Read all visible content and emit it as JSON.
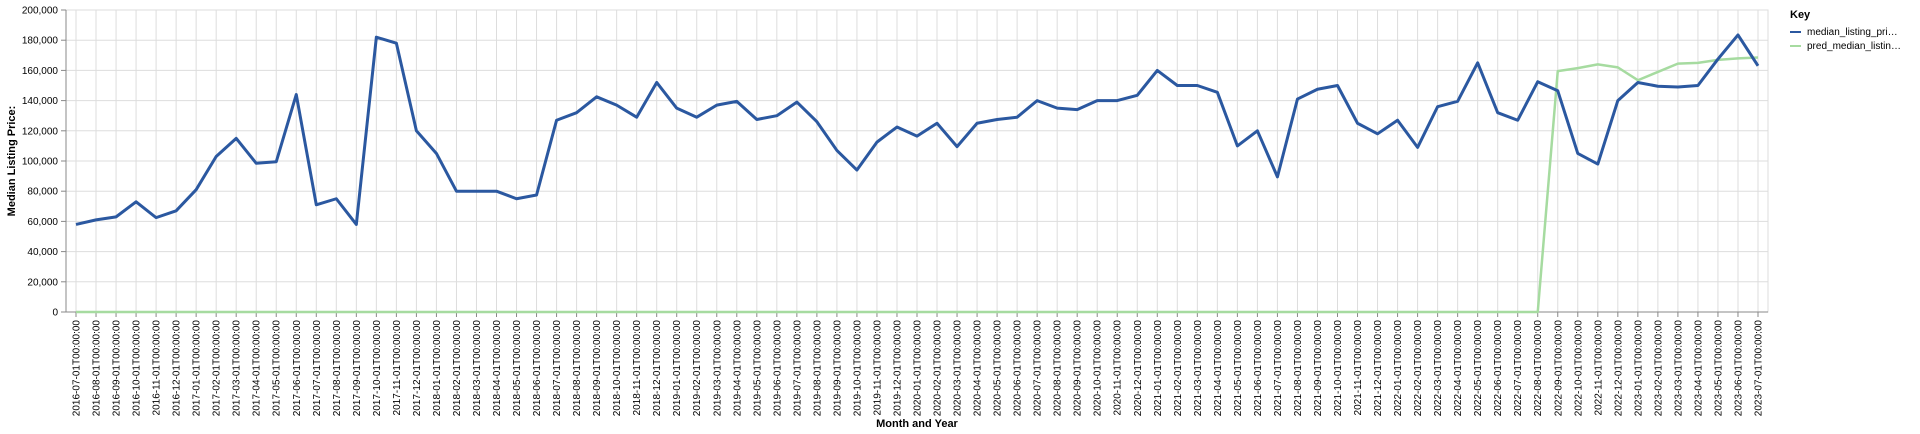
{
  "chart_data": {
    "type": "line",
    "xlabel": "Month and Year",
    "ylabel": "Median Listing Price:",
    "ylim": [
      0,
      200000
    ],
    "yticks": [
      "0",
      "20,000",
      "40,000",
      "60,000",
      "80,000",
      "100,000",
      "120,000",
      "140,000",
      "160,000",
      "180,000",
      "200,000"
    ],
    "grid": true,
    "legend": {
      "title": "Key",
      "placement": "top-right"
    },
    "x": [
      "2016-07-01T00:00:00",
      "2016-08-01T00:00:00",
      "2016-09-01T00:00:00",
      "2016-10-01T00:00:00",
      "2016-11-01T00:00:00",
      "2016-12-01T00:00:00",
      "2017-01-01T00:00:00",
      "2017-02-01T00:00:00",
      "2017-03-01T00:00:00",
      "2017-04-01T00:00:00",
      "2017-05-01T00:00:00",
      "2017-06-01T00:00:00",
      "2017-07-01T00:00:00",
      "2017-08-01T00:00:00",
      "2017-09-01T00:00:00",
      "2017-10-01T00:00:00",
      "2017-11-01T00:00:00",
      "2017-12-01T00:00:00",
      "2018-01-01T00:00:00",
      "2018-02-01T00:00:00",
      "2018-03-01T00:00:00",
      "2018-04-01T00:00:00",
      "2018-05-01T00:00:00",
      "2018-06-01T00:00:00",
      "2018-07-01T00:00:00",
      "2018-08-01T00:00:00",
      "2018-09-01T00:00:00",
      "2018-10-01T00:00:00",
      "2018-11-01T00:00:00",
      "2018-12-01T00:00:00",
      "2019-01-01T00:00:00",
      "2019-02-01T00:00:00",
      "2019-03-01T00:00:00",
      "2019-04-01T00:00:00",
      "2019-05-01T00:00:00",
      "2019-06-01T00:00:00",
      "2019-07-01T00:00:00",
      "2019-08-01T00:00:00",
      "2019-09-01T00:00:00",
      "2019-10-01T00:00:00",
      "2019-11-01T00:00:00",
      "2019-12-01T00:00:00",
      "2020-01-01T00:00:00",
      "2020-02-01T00:00:00",
      "2020-03-01T00:00:00",
      "2020-04-01T00:00:00",
      "2020-05-01T00:00:00",
      "2020-06-01T00:00:00",
      "2020-07-01T00:00:00",
      "2020-08-01T00:00:00",
      "2020-09-01T00:00:00",
      "2020-10-01T00:00:00",
      "2020-11-01T00:00:00",
      "2020-12-01T00:00:00",
      "2021-01-01T00:00:00",
      "2021-02-01T00:00:00",
      "2021-03-01T00:00:00",
      "2021-04-01T00:00:00",
      "2021-05-01T00:00:00",
      "2021-06-01T00:00:00",
      "2021-07-01T00:00:00",
      "2021-08-01T00:00:00",
      "2021-09-01T00:00:00",
      "2021-10-01T00:00:00",
      "2021-11-01T00:00:00",
      "2021-12-01T00:00:00",
      "2022-01-01T00:00:00",
      "2022-02-01T00:00:00",
      "2022-03-01T00:00:00",
      "2022-04-01T00:00:00",
      "2022-05-01T00:00:00",
      "2022-06-01T00:00:00",
      "2022-07-01T00:00:00",
      "2022-08-01T00:00:00",
      "2022-09-01T00:00:00",
      "2022-10-01T00:00:00",
      "2022-11-01T00:00:00",
      "2022-12-01T00:00:00",
      "2023-01-01T00:00:00",
      "2023-02-01T00:00:00",
      "2023-03-01T00:00:00",
      "2023-04-01T00:00:00",
      "2023-05-01T00:00:00",
      "2023-06-01T00:00:00",
      "2023-07-01T00:00:00"
    ],
    "series": [
      {
        "name": "median_listing_pri…",
        "color": "#2b58a0",
        "values": [
          58000,
          61000,
          63000,
          73000,
          62500,
          67000,
          81000,
          103000,
          115000,
          98500,
          99500,
          144000,
          71000,
          75000,
          58000,
          182000,
          178000,
          120000,
          105000,
          80000,
          80000,
          80000,
          75000,
          77500,
          127000,
          132000,
          142500,
          137000,
          129000,
          152000,
          135000,
          129000,
          137000,
          139500,
          127500,
          130000,
          139000,
          126000,
          107000,
          94000,
          112500,
          122500,
          116500,
          125000,
          109500,
          125000,
          127500,
          129000,
          140000,
          135000,
          134000,
          140000,
          140000,
          143500,
          160000,
          150000,
          150000,
          145500,
          110000,
          120000,
          89500,
          141000,
          147500,
          150000,
          125000,
          118000,
          127000,
          109000,
          136000,
          139500,
          165000,
          132000,
          127000,
          152500,
          146500,
          105000,
          98000,
          140000,
          152000,
          149500,
          149000,
          150000,
          167500,
          183500,
          163000
        ]
      },
      {
        "name": "pred_median_listin…",
        "color": "#a6dba0",
        "values": [
          0,
          0,
          0,
          0,
          0,
          0,
          0,
          0,
          0,
          0,
          0,
          0,
          0,
          0,
          0,
          0,
          0,
          0,
          0,
          0,
          0,
          0,
          0,
          0,
          0,
          0,
          0,
          0,
          0,
          0,
          0,
          0,
          0,
          0,
          0,
          0,
          0,
          0,
          0,
          0,
          0,
          0,
          0,
          0,
          0,
          0,
          0,
          0,
          0,
          0,
          0,
          0,
          0,
          0,
          0,
          0,
          0,
          0,
          0,
          0,
          0,
          0,
          0,
          0,
          0,
          0,
          0,
          0,
          0,
          0,
          0,
          0,
          0,
          0,
          159500,
          161500,
          164000,
          162000,
          153500,
          159000,
          164500,
          165000,
          167000,
          168000,
          168500
        ]
      }
    ]
  }
}
